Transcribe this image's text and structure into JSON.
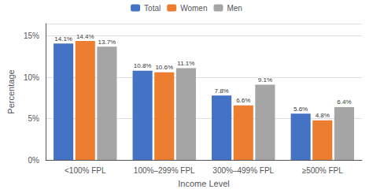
{
  "chart_data": {
    "type": "bar",
    "xlabel": "Income Level",
    "ylabel": "Percentage",
    "categories": [
      "<100% FPL",
      "100%–299% FPL",
      "300%–499% FPL",
      "≥500% FPL"
    ],
    "series": [
      {
        "name": "Total",
        "color": "#4472C4",
        "values": [
          14.1,
          10.8,
          7.8,
          5.6
        ],
        "value_labels": [
          "14.1%",
          "10.8%",
          "7.8%",
          "5.6%"
        ]
      },
      {
        "name": "Women",
        "color": "#ED7D31",
        "values": [
          14.4,
          10.6,
          6.6,
          4.8
        ],
        "value_labels": [
          "14.4%",
          "10.6%",
          "6.6%",
          "4.8%"
        ]
      },
      {
        "name": "Men",
        "color": "#A5A5A5",
        "values": [
          13.7,
          11.1,
          9.1,
          6.4
        ],
        "value_labels": [
          "13.7%",
          "11.1%",
          "9.1%",
          "6.4%"
        ]
      }
    ],
    "ylim": [
      0,
      16.5
    ],
    "yticks": [
      {
        "value": 0,
        "label": "0%"
      },
      {
        "value": 5,
        "label": "5%"
      },
      {
        "value": 10,
        "label": "10%"
      },
      {
        "value": 15,
        "label": "15%"
      }
    ],
    "grid": true,
    "legend": "top",
    "data_labels": true
  }
}
